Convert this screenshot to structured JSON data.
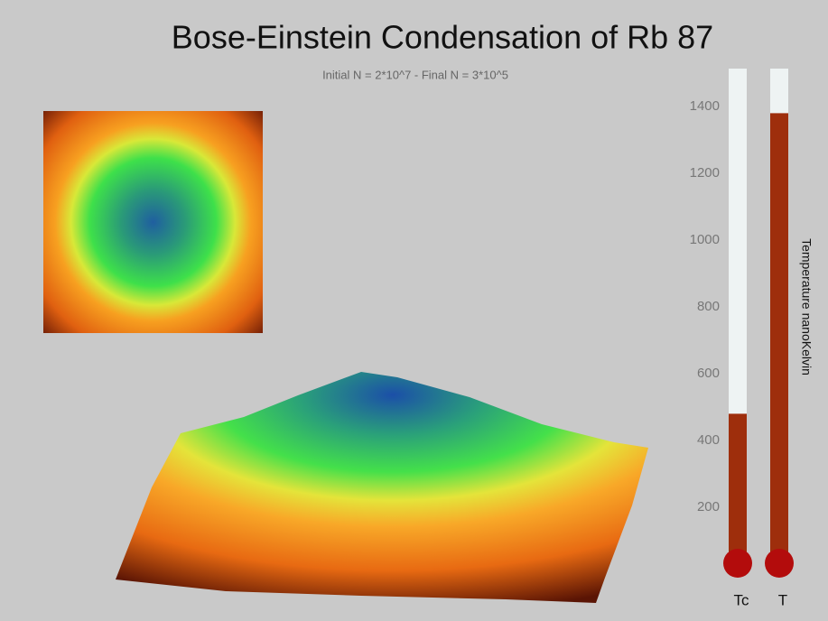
{
  "chart_data": {
    "type": "thermometer",
    "title": "Bose-Einstein Condensation of Rb 87",
    "subtitle": "Initial N = 2*10^7  - Final N = 3*10^5",
    "y_label": "Temperature nanoKelvin",
    "categories": [
      "Tc",
      "T"
    ],
    "values": [
      480,
      1380
    ],
    "color": "#9e2e0c",
    "ylim": [
      0,
      1500
    ],
    "yticks": [
      200,
      400,
      600,
      800,
      1000,
      1200,
      1400
    ]
  }
}
